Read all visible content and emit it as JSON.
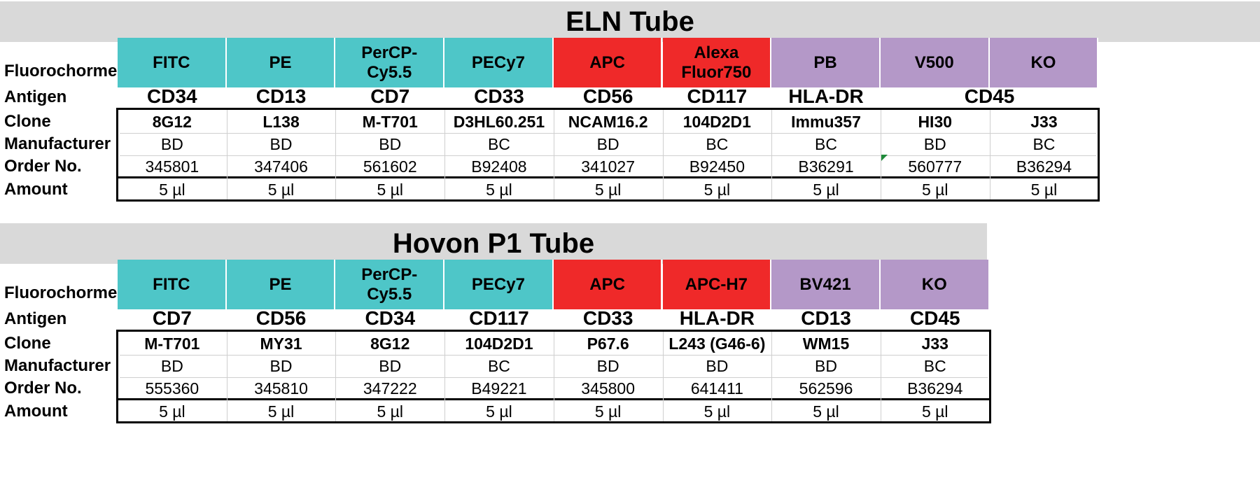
{
  "panels": [
    {
      "title": "ELN Tube",
      "fluorochromes": [
        {
          "label": "FITC",
          "color": "#4ec6c8"
        },
        {
          "label": "PE",
          "color": "#4ec6c8"
        },
        {
          "label": "PerCP-\nCy5.5",
          "color": "#4ec6c8"
        },
        {
          "label": "PECy7",
          "color": "#4ec6c8"
        },
        {
          "label": "APC",
          "color": "#ef2929"
        },
        {
          "label": "Alexa\nFluor750",
          "color": "#ef2929"
        },
        {
          "label": "PB",
          "color": "#b498c8"
        },
        {
          "label": "V500",
          "color": "#b498c8"
        },
        {
          "label": "KO",
          "color": "#b498c8"
        }
      ],
      "antigens": [
        {
          "label": "CD34",
          "span": 1
        },
        {
          "label": "CD13",
          "span": 1
        },
        {
          "label": "CD7",
          "span": 1
        },
        {
          "label": "CD33",
          "span": 1
        },
        {
          "label": "CD56",
          "span": 1
        },
        {
          "label": "CD117",
          "span": 1
        },
        {
          "label": "HLA-DR",
          "span": 1
        },
        {
          "label": "CD45",
          "span": 2
        }
      ],
      "clone": [
        "8G12",
        "L138",
        "M-T701",
        "D3HL60.251",
        "NCAM16.2",
        "104D2D1",
        "Immu357",
        "HI30",
        "J33"
      ],
      "manufacturer": [
        "BD",
        "BD",
        "BD",
        "BC",
        "BD",
        "BC",
        "BC",
        "BD",
        "BC"
      ],
      "order_no": [
        "345801",
        "347406",
        "561602",
        "B92408",
        "341027",
        "B92450",
        "B36291",
        "560777",
        "B36294"
      ],
      "amount": [
        "5 µl",
        "5 µl",
        "5 µl",
        "5 µl",
        "5 µl",
        "5 µl",
        "5 µl",
        "5 µl",
        "5 µl"
      ]
    },
    {
      "title": "Hovon P1 Tube",
      "fluorochromes": [
        {
          "label": "FITC",
          "color": "#4ec6c8"
        },
        {
          "label": "PE",
          "color": "#4ec6c8"
        },
        {
          "label": "PerCP-\nCy5.5",
          "color": "#4ec6c8"
        },
        {
          "label": "PECy7",
          "color": "#4ec6c8"
        },
        {
          "label": "APC",
          "color": "#ef2929"
        },
        {
          "label": "APC-H7",
          "color": "#ef2929"
        },
        {
          "label": "BV421",
          "color": "#b498c8"
        },
        {
          "label": "KO",
          "color": "#b498c8"
        }
      ],
      "antigens": [
        {
          "label": "CD7",
          "span": 1
        },
        {
          "label": "CD56",
          "span": 1
        },
        {
          "label": "CD34",
          "span": 1
        },
        {
          "label": "CD117",
          "span": 1
        },
        {
          "label": "CD33",
          "span": 1
        },
        {
          "label": "HLA-DR",
          "span": 1
        },
        {
          "label": "CD13",
          "span": 1
        },
        {
          "label": "CD45",
          "span": 1
        }
      ],
      "clone": [
        "M-T701",
        "MY31",
        "8G12",
        "104D2D1",
        "P67.6",
        "L243 (G46-6)",
        "WM15",
        "J33"
      ],
      "manufacturer": [
        "BD",
        "BD",
        "BD",
        "BC",
        "BD",
        "BD",
        "BD",
        "BC"
      ],
      "order_no": [
        "555360",
        "345810",
        "347222",
        "B49221",
        "345800",
        "641411",
        "562596",
        "B36294"
      ],
      "amount": [
        "5 µl",
        "5 µl",
        "5 µl",
        "5 µl",
        "5 µl",
        "5 µl",
        "5 µl",
        "5 µl"
      ]
    }
  ],
  "row_labels": {
    "fluorochrome": "Fluorochorme",
    "antigen": "Antigen",
    "clone": "Clone",
    "manufacturer": "Manufacturer",
    "order_no": "Order No.",
    "amount": "Amount"
  }
}
